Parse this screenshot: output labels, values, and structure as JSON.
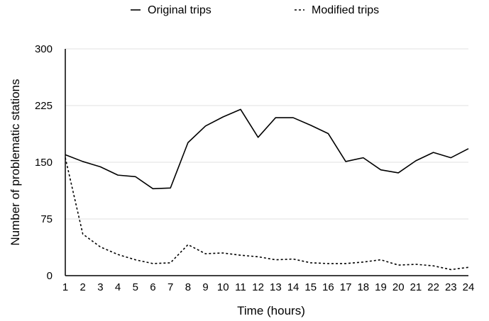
{
  "chart_data": {
    "type": "line",
    "title": "",
    "xlabel": "Time (hours)",
    "ylabel": "Number of problematic stations",
    "x": [
      1,
      2,
      3,
      4,
      5,
      6,
      7,
      8,
      9,
      10,
      11,
      12,
      13,
      14,
      15,
      16,
      17,
      18,
      19,
      20,
      21,
      22,
      23,
      24
    ],
    "ylim": [
      0,
      300
    ],
    "yticks": [
      0,
      75,
      150,
      225,
      300
    ],
    "grid": true,
    "legend_position": "top",
    "series": [
      {
        "name": "Original trips",
        "style": "solid",
        "color": "#000000",
        "values": [
          160,
          151,
          144,
          133,
          131,
          115,
          116,
          176,
          198,
          210,
          220,
          183,
          209,
          209,
          199,
          188,
          151,
          156,
          140,
          136,
          152,
          163,
          156,
          168
        ]
      },
      {
        "name": "Modified trips",
        "style": "dashed",
        "color": "#000000",
        "values": [
          156,
          55,
          38,
          28,
          21,
          16,
          17,
          41,
          29,
          30,
          27,
          25,
          21,
          22,
          17,
          16,
          16,
          18,
          21,
          14,
          15,
          13,
          8,
          11
        ]
      }
    ]
  }
}
